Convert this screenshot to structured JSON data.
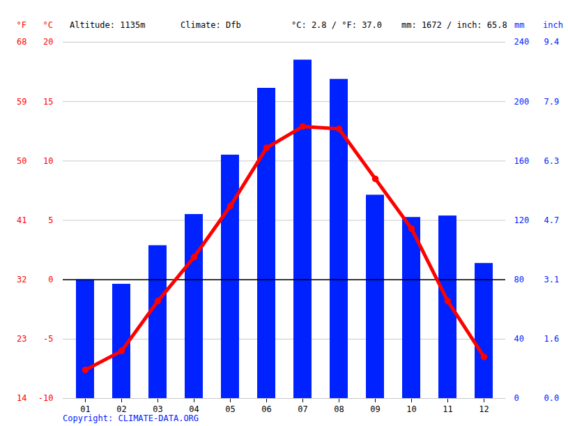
{
  "chart_data": {
    "type": "combo",
    "header": [
      "Altitude: 1135m",
      "Climate: Dfb",
      "°C: 2.8 / °F: 37.0",
      "mm: 1672 / inch: 65.8"
    ],
    "caption": "Copyright: CLIMATE-DATA.ORG",
    "categories": [
      "01",
      "02",
      "03",
      "04",
      "05",
      "06",
      "07",
      "08",
      "09",
      "10",
      "11",
      "12"
    ],
    "series": [
      {
        "type": "bar",
        "axis": "y2",
        "color": "#0022ff",
        "values": [
          80,
          77,
          103,
          124,
          164,
          209,
          228,
          215,
          137,
          122,
          123,
          91
        ]
      },
      {
        "type": "line",
        "color": "#ff0000",
        "marker": "circle",
        "values": [
          -7.6,
          -6.0,
          -1.8,
          1.9,
          6.2,
          11.1,
          12.9,
          12.7,
          8.5,
          4.3,
          -1.8,
          -6.5
        ]
      }
    ],
    "ylabel": "°C",
    "ylim": [
      -10,
      20
    ],
    "yticks": [
      -10,
      -5,
      0,
      5,
      10,
      15,
      20
    ],
    "y2label": "mm",
    "y2lim": [
      0,
      240
    ],
    "y2ticks": [
      0,
      40,
      80,
      120,
      160,
      200,
      240
    ],
    "fahrenheit_axis": {
      "label": "°F",
      "ticks": [
        {
          "value": -10,
          "label": "14"
        },
        {
          "value": -5,
          "label": "23"
        },
        {
          "value": 0,
          "label": "32"
        },
        {
          "value": 5,
          "label": "41"
        },
        {
          "value": 10,
          "label": "50"
        },
        {
          "value": 15,
          "label": "59"
        },
        {
          "value": 20,
          "label": "68"
        }
      ]
    },
    "inch_axis": {
      "label": "inch",
      "ticks": [
        {
          "value": 0,
          "label": "0.0"
        },
        {
          "value": 40,
          "label": "1.6"
        },
        {
          "value": 80,
          "label": "3.1"
        },
        {
          "value": 120,
          "label": "4.7"
        },
        {
          "value": 160,
          "label": "6.3"
        },
        {
          "value": 200,
          "label": "7.9"
        },
        {
          "value": 240,
          "label": "9.4"
        }
      ]
    },
    "grid": true
  }
}
